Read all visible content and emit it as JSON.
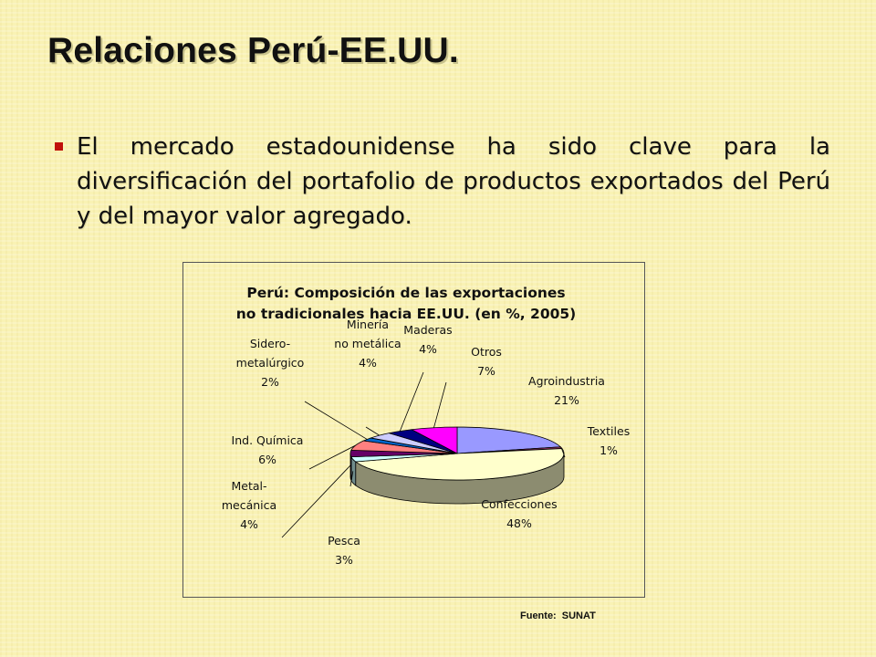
{
  "slide": {
    "title": "Relaciones Perú-EE.UU.",
    "bullet": "El mercado estadounidense ha sido clave para la diversificación del portafolio de productos exportados del Perú y del mayor valor agregado.",
    "source_label": "Fuente:",
    "source_value": "SUNAT"
  },
  "colors": {
    "bullet": "#c0100c",
    "background": "#f9f2b4"
  },
  "chart_data": {
    "type": "pie",
    "title": [
      "Perú: Composición de las exportaciones",
      "no tradicionales hacia EE.UU. (en %, 2005)"
    ],
    "legend": "none",
    "slices": [
      {
        "name": [
          "Agroindustria"
        ],
        "value": 21,
        "label": "21%",
        "color": "#9999ff"
      },
      {
        "name": [
          "Textiles"
        ],
        "value": 1,
        "label": "1%",
        "color": "#993366"
      },
      {
        "name": [
          "Confecciones"
        ],
        "value": 48,
        "label": "48%",
        "color": "#ffffcc"
      },
      {
        "name": [
          "Pesca"
        ],
        "value": 3,
        "label": "3%",
        "color": "#ccffff"
      },
      {
        "name": [
          "Metal-",
          "mecánica"
        ],
        "value": 4,
        "label": "4%",
        "color": "#660066"
      },
      {
        "name": [
          "Ind. Química"
        ],
        "value": 6,
        "label": "6%",
        "color": "#ff8080"
      },
      {
        "name": [
          "Sidero-",
          "metalúrgico"
        ],
        "value": 2,
        "label": "2%",
        "color": "#0066cc"
      },
      {
        "name": [
          "Minería",
          "no metálica"
        ],
        "value": 4,
        "label": "4%",
        "color": "#ccccff"
      },
      {
        "name": [
          "Maderas"
        ],
        "value": 4,
        "label": "4%",
        "color": "#000080"
      },
      {
        "name": [
          "Otros"
        ],
        "value": 7,
        "label": "7%",
        "color": "#ff00ff"
      }
    ]
  }
}
